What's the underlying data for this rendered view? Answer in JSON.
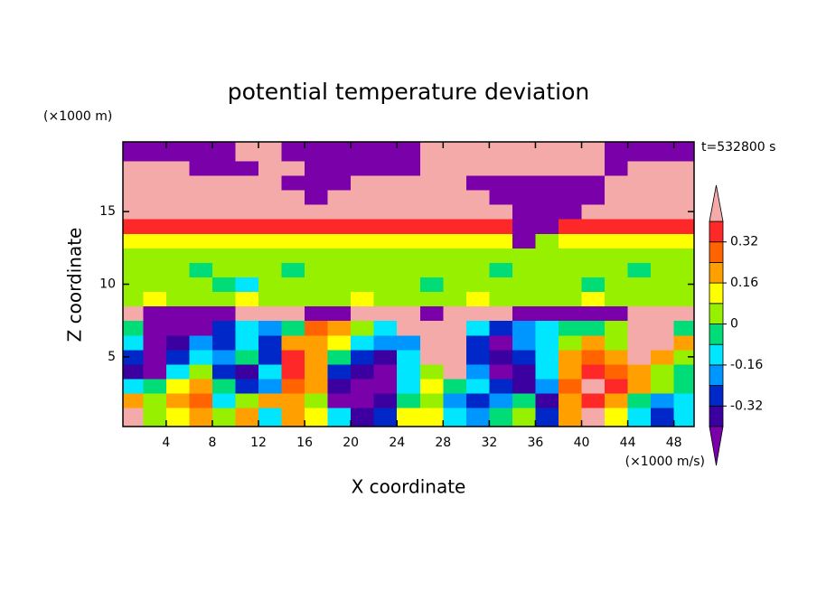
{
  "chart_data": {
    "type": "contour",
    "title": "potential temperature deviation",
    "y_unit": "(×1000 m)",
    "x_unit": "(×1000 m/s)",
    "time_label": "t=532800 s",
    "x_label": "X coordinate",
    "y_label": "Z coordinate",
    "xlim": [
      0.25,
      49.75
    ],
    "ylim": [
      0.2,
      19.8
    ],
    "xticks": [
      4,
      8,
      12,
      16,
      20,
      24,
      28,
      32,
      36,
      40,
      44,
      48
    ],
    "yticks": [
      5,
      10,
      15
    ],
    "x": [
      1,
      3,
      5,
      7,
      9,
      11,
      13,
      15,
      17,
      19,
      21,
      23,
      25,
      27,
      29,
      31,
      33,
      35,
      37,
      39,
      41,
      43,
      45,
      47,
      49
    ],
    "z": [
      1,
      2,
      3,
      4,
      5,
      6,
      7,
      8,
      9,
      10,
      11,
      12,
      13,
      14,
      15,
      16,
      17,
      18,
      19
    ],
    "levels": [
      -0.4,
      -0.32,
      -0.24,
      -0.16,
      -0.08,
      0,
      0.08,
      0.16,
      0.24,
      0.32,
      0.4
    ],
    "colors": [
      "#7a00aa",
      "#3c00a0",
      "#0028c8",
      "#0096ff",
      "#00e6ff",
      "#00dc78",
      "#96f000",
      "#ffff00",
      "#ffa000",
      "#ff6400",
      "#ff2828",
      "#f5aaaa"
    ],
    "colorbar_ticks": [
      0.32,
      0.16,
      0,
      -0.16,
      -0.32
    ],
    "values": [
      [
        0.45,
        0.04,
        0.12,
        0.2,
        0.04,
        0.2,
        -0.12,
        0.2,
        0.12,
        -0.12,
        -0.36,
        -0.28,
        0.12,
        0.12,
        -0.12,
        -0.2,
        -0.04,
        0.04,
        -0.28,
        0.2,
        0.45,
        0.12,
        -0.12,
        -0.28,
        -0.12
      ],
      [
        0.2,
        0.04,
        0.2,
        0.28,
        -0.12,
        0.04,
        0.2,
        0.2,
        0.04,
        -0.45,
        -0.45,
        -0.36,
        -0.04,
        0.04,
        -0.2,
        -0.28,
        -0.2,
        -0.04,
        -0.36,
        0.2,
        0.36,
        0.2,
        -0.04,
        -0.2,
        -0.12
      ],
      [
        -0.12,
        -0.04,
        0.12,
        0.2,
        -0.04,
        -0.28,
        -0.2,
        0.28,
        0.2,
        -0.36,
        -0.45,
        -0.45,
        -0.12,
        0.12,
        -0.04,
        -0.12,
        -0.28,
        -0.36,
        -0.2,
        0.28,
        0.45,
        0.36,
        0.2,
        0.04,
        -0.04
      ],
      [
        -0.36,
        -0.45,
        -0.12,
        0.04,
        -0.28,
        -0.36,
        -0.12,
        0.36,
        0.2,
        -0.28,
        -0.36,
        -0.45,
        -0.12,
        0.04,
        0.45,
        -0.2,
        -0.45,
        -0.36,
        -0.12,
        0.2,
        0.36,
        0.28,
        0.2,
        0.04,
        -0.04
      ],
      [
        -0.28,
        -0.45,
        -0.28,
        -0.12,
        -0.2,
        -0.04,
        -0.28,
        0.36,
        0.2,
        -0.04,
        -0.28,
        -0.36,
        -0.12,
        0.45,
        0.45,
        -0.28,
        -0.36,
        -0.28,
        -0.12,
        0.2,
        0.28,
        0.2,
        0.45,
        0.2,
        0.04
      ],
      [
        -0.12,
        -0.45,
        -0.36,
        -0.2,
        -0.28,
        -0.12,
        -0.28,
        0.2,
        0.2,
        0.12,
        -0.12,
        -0.2,
        -0.2,
        0.45,
        0.45,
        -0.28,
        -0.45,
        -0.2,
        -0.12,
        0.04,
        0.2,
        0.04,
        0.45,
        0.45,
        0.2
      ],
      [
        -0.04,
        -0.45,
        -0.45,
        -0.45,
        -0.28,
        -0.12,
        -0.2,
        -0.04,
        0.28,
        0.2,
        0.04,
        -0.12,
        0.45,
        0.45,
        0.45,
        -0.12,
        -0.28,
        -0.2,
        -0.12,
        -0.04,
        -0.04,
        0.04,
        0.45,
        0.45,
        -0.04
      ],
      [
        0.45,
        -0.45,
        -0.45,
        -0.45,
        -0.45,
        0.45,
        0.45,
        0.45,
        -0.45,
        -0.45,
        0.45,
        0.45,
        0.45,
        -0.45,
        0.45,
        0.45,
        0.45,
        -0.45,
        -0.45,
        -0.45,
        -0.45,
        -0.45,
        0.45,
        0.45,
        0.45
      ],
      [
        0.04,
        0.12,
        0.04,
        0.04,
        0.04,
        0.12,
        0.04,
        0.04,
        0.04,
        0.04,
        0.12,
        0.04,
        0.04,
        0.04,
        0.04,
        0.12,
        0.04,
        0.04,
        0.04,
        0.04,
        0.12,
        0.04,
        0.04,
        0.04,
        0.04
      ],
      [
        0.04,
        0.04,
        0.04,
        0.04,
        -0.04,
        -0.12,
        0.04,
        0.04,
        0.04,
        0.04,
        0.04,
        0.04,
        0.04,
        -0.04,
        0.04,
        0.04,
        0.04,
        0.04,
        0.04,
        0.04,
        -0.04,
        0.04,
        0.04,
        0.04,
        0.04
      ],
      [
        0.04,
        0.04,
        0.04,
        -0.04,
        0.04,
        0.04,
        0.04,
        -0.04,
        0.04,
        0.04,
        0.04,
        0.04,
        0.04,
        0.04,
        0.04,
        0.04,
        -0.04,
        0.04,
        0.04,
        0.04,
        0.04,
        0.04,
        -0.04,
        0.04,
        0.04
      ],
      [
        0.04,
        0.04,
        0.04,
        0.04,
        0.04,
        0.04,
        0.04,
        0.04,
        0.04,
        0.04,
        0.04,
        0.04,
        0.04,
        0.04,
        0.04,
        0.04,
        0.04,
        0.04,
        0.04,
        0.04,
        0.04,
        0.04,
        0.04,
        0.04,
        0.04
      ],
      [
        0.12,
        0.12,
        0.12,
        0.12,
        0.12,
        0.12,
        0.12,
        0.12,
        0.12,
        0.12,
        0.12,
        0.12,
        0.12,
        0.12,
        0.12,
        0.12,
        0.12,
        -0.45,
        0.04,
        0.12,
        0.12,
        0.12,
        0.12,
        0.12,
        0.12
      ],
      [
        0.36,
        0.36,
        0.36,
        0.36,
        0.36,
        0.36,
        0.36,
        0.36,
        0.36,
        0.36,
        0.36,
        0.36,
        0.36,
        0.36,
        0.36,
        0.36,
        0.36,
        -0.45,
        -0.45,
        0.36,
        0.36,
        0.36,
        0.36,
        0.36,
        0.36
      ],
      [
        0.45,
        0.45,
        0.45,
        0.45,
        0.45,
        0.45,
        0.45,
        0.45,
        0.45,
        0.45,
        0.45,
        0.45,
        0.45,
        0.45,
        0.45,
        0.45,
        0.45,
        -0.45,
        -0.45,
        -0.45,
        0.45,
        0.45,
        0.45,
        0.45,
        0.45
      ],
      [
        0.45,
        0.45,
        0.45,
        0.45,
        0.45,
        0.45,
        0.45,
        0.45,
        -0.45,
        0.45,
        0.45,
        0.45,
        0.45,
        0.45,
        0.45,
        0.45,
        -0.45,
        -0.45,
        -0.45,
        -0.45,
        -0.45,
        0.45,
        0.45,
        0.45,
        0.45
      ],
      [
        0.45,
        0.45,
        0.45,
        0.45,
        0.45,
        0.45,
        0.45,
        -0.45,
        -0.45,
        -0.45,
        0.45,
        0.45,
        0.45,
        0.45,
        0.45,
        -0.45,
        -0.45,
        -0.45,
        -0.45,
        -0.45,
        -0.45,
        0.45,
        0.45,
        0.45,
        0.45
      ],
      [
        0.45,
        0.45,
        0.45,
        -0.45,
        -0.45,
        -0.45,
        0.45,
        0.45,
        -0.45,
        -0.45,
        -0.45,
        -0.45,
        -0.45,
        0.45,
        0.45,
        0.45,
        0.45,
        0.45,
        0.45,
        0.45,
        0.45,
        -0.45,
        0.45,
        0.45,
        0.45
      ],
      [
        -0.45,
        -0.45,
        -0.45,
        -0.45,
        -0.45,
        0.45,
        0.45,
        -0.45,
        -0.45,
        -0.45,
        -0.45,
        -0.45,
        -0.45,
        0.45,
        0.45,
        0.45,
        0.45,
        0.45,
        0.45,
        0.45,
        0.45,
        -0.45,
        -0.45,
        -0.45,
        -0.45
      ]
    ]
  }
}
